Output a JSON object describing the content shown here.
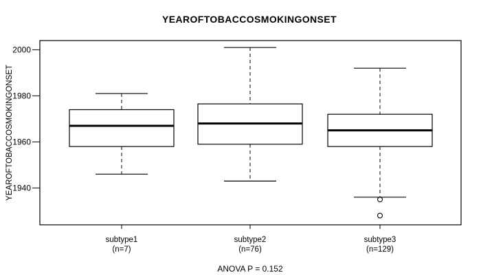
{
  "chart_data": {
    "type": "boxplot",
    "title": "YEAROFTOBACCOSMOKINGONSET",
    "ylabel": "YEAROFTOBACCOSMOKINGONSET",
    "annotation": "ANOVA P = 0.152",
    "y_axis": {
      "ticks": [
        1940,
        1960,
        1980,
        2000
      ],
      "range": [
        1924,
        2004
      ],
      "grid": false
    },
    "legend": null,
    "series": [
      {
        "label": "subtype1",
        "sublabel": "(n=7)",
        "n": 7,
        "whisker_low": 1946,
        "q1": 1958,
        "median": 1967,
        "q3": 1974,
        "whisker_high": 1981,
        "outliers": []
      },
      {
        "label": "subtype2",
        "sublabel": "(n=76)",
        "n": 76,
        "whisker_low": 1943,
        "q1": 1959,
        "median": 1968,
        "q3": 1976.5,
        "whisker_high": 2001,
        "outliers": []
      },
      {
        "label": "subtype3",
        "sublabel": "(n=129)",
        "n": 129,
        "whisker_low": 1936,
        "q1": 1958,
        "median": 1965,
        "q3": 1972,
        "whisker_high": 1992,
        "outliers": [
          1935,
          1928
        ]
      }
    ],
    "colors": {
      "line": "#000000",
      "box_fill": "#ffffff",
      "background": "#ffffff"
    }
  }
}
